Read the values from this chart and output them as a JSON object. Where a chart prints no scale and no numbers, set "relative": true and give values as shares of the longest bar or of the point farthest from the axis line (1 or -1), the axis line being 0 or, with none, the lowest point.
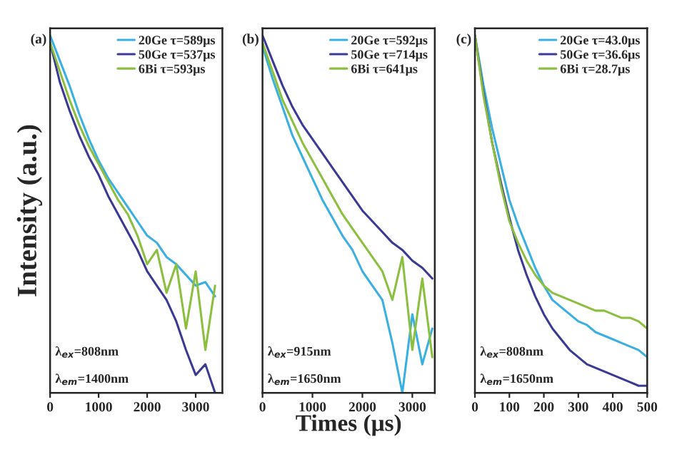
{
  "chart_data": [
    {
      "type": "line",
      "relative": true,
      "ylabel": "Intensity (a.u.)",
      "xlim": [
        0,
        3550
      ],
      "xticks": [
        0,
        1000,
        2000,
        3000
      ],
      "tick_labels": "x",
      "legend": "top right",
      "line_style": "solid",
      "marker": "none",
      "annotations": [
        "(a)",
        "λ$_{ex}$=808nm",
        "λ$_{em}$=1400nm"
      ],
      "x": [
        0,
        200,
        400,
        600,
        800,
        1000,
        1200,
        1400,
        1600,
        1800,
        2000,
        2200,
        2400,
        2600,
        2800,
        3000,
        3200,
        3400
      ],
      "series": [
        {
          "name": "20Ge τ=589μs",
          "color": "#3ab0e2",
          "values": [
            1.0,
            0.93,
            0.86,
            0.78,
            0.71,
            0.65,
            0.6,
            0.56,
            0.52,
            0.48,
            0.44,
            0.42,
            0.38,
            0.36,
            0.33,
            0.3,
            0.31,
            0.27
          ]
        },
        {
          "name": "50Ge τ=537μs",
          "color": "#3a3a94",
          "values": [
            0.98,
            0.87,
            0.79,
            0.72,
            0.66,
            0.61,
            0.55,
            0.5,
            0.45,
            0.4,
            0.34,
            0.3,
            0.26,
            0.2,
            0.12,
            0.05,
            0.08,
            0.0
          ]
        },
        {
          "name": "6Bi τ=593μs",
          "color": "#8cbf3f",
          "values": [
            0.98,
            0.9,
            0.82,
            0.75,
            0.69,
            0.64,
            0.59,
            0.54,
            0.5,
            0.44,
            0.36,
            0.4,
            0.28,
            0.36,
            0.18,
            0.34,
            0.12,
            0.3
          ]
        }
      ]
    },
    {
      "type": "line",
      "relative": true,
      "xlabel": "Times (μs)",
      "xlim": [
        0,
        3450
      ],
      "xticks": [
        0,
        1000,
        2000,
        3000
      ],
      "tick_labels": "x",
      "legend": "top right",
      "line_style": "solid",
      "marker": "none",
      "annotations": [
        "(b)",
        "λ$_{ex}$=915nm",
        "λ$_{em}$=1650nm"
      ],
      "x": [
        0,
        200,
        400,
        600,
        800,
        1000,
        1200,
        1400,
        1600,
        1800,
        2000,
        2200,
        2400,
        2600,
        2800,
        3000,
        3200,
        3400
      ],
      "series": [
        {
          "name": "20Ge τ=592μs",
          "color": "#3ab0e2",
          "values": [
            0.97,
            0.88,
            0.8,
            0.72,
            0.66,
            0.6,
            0.54,
            0.49,
            0.44,
            0.4,
            0.34,
            0.3,
            0.26,
            0.14,
            0.0,
            0.22,
            0.08,
            0.18
          ]
        },
        {
          "name": "50Ge τ=714μs",
          "color": "#3a3a94",
          "values": [
            1.0,
            0.93,
            0.86,
            0.8,
            0.75,
            0.71,
            0.67,
            0.63,
            0.59,
            0.55,
            0.51,
            0.48,
            0.45,
            0.42,
            0.4,
            0.37,
            0.35,
            0.32
          ]
        },
        {
          "name": "6Bi τ=641μs",
          "color": "#8cbf3f",
          "values": [
            0.98,
            0.9,
            0.82,
            0.76,
            0.7,
            0.65,
            0.6,
            0.55,
            0.5,
            0.46,
            0.42,
            0.38,
            0.34,
            0.26,
            0.38,
            0.12,
            0.32,
            0.1
          ]
        }
      ]
    },
    {
      "type": "line",
      "relative": true,
      "xlim": [
        0,
        500
      ],
      "xticks": [
        0,
        100,
        200,
        300,
        400,
        500
      ],
      "tick_labels": "x",
      "legend": "top right",
      "line_style": "solid",
      "marker": "none",
      "annotations": [
        "(c)",
        "λ$_{ex}$=808nm",
        "λ$_{em}$=1650nm"
      ],
      "x": [
        0,
        25,
        50,
        75,
        100,
        125,
        150,
        175,
        200,
        225,
        250,
        275,
        300,
        325,
        350,
        375,
        400,
        425,
        450,
        475,
        500
      ],
      "series": [
        {
          "name": "20Ge τ=43.0μs",
          "color": "#3ab0e2",
          "values": [
            1.0,
            0.86,
            0.74,
            0.64,
            0.54,
            0.47,
            0.41,
            0.35,
            0.3,
            0.26,
            0.24,
            0.22,
            0.2,
            0.19,
            0.17,
            0.16,
            0.15,
            0.14,
            0.13,
            0.12,
            0.1
          ]
        },
        {
          "name": "50Ge τ=36.6μs",
          "color": "#3a3a94",
          "values": [
            1.0,
            0.84,
            0.7,
            0.59,
            0.49,
            0.4,
            0.33,
            0.27,
            0.22,
            0.18,
            0.15,
            0.12,
            0.1,
            0.08,
            0.07,
            0.06,
            0.05,
            0.04,
            0.03,
            0.02,
            0.02
          ]
        },
        {
          "name": "6Bi τ=28.7μs",
          "color": "#8cbf3f",
          "values": [
            1.0,
            0.83,
            0.7,
            0.58,
            0.48,
            0.42,
            0.37,
            0.33,
            0.3,
            0.28,
            0.27,
            0.26,
            0.25,
            0.24,
            0.23,
            0.23,
            0.22,
            0.21,
            0.21,
            0.2,
            0.18
          ]
        }
      ]
    }
  ]
}
